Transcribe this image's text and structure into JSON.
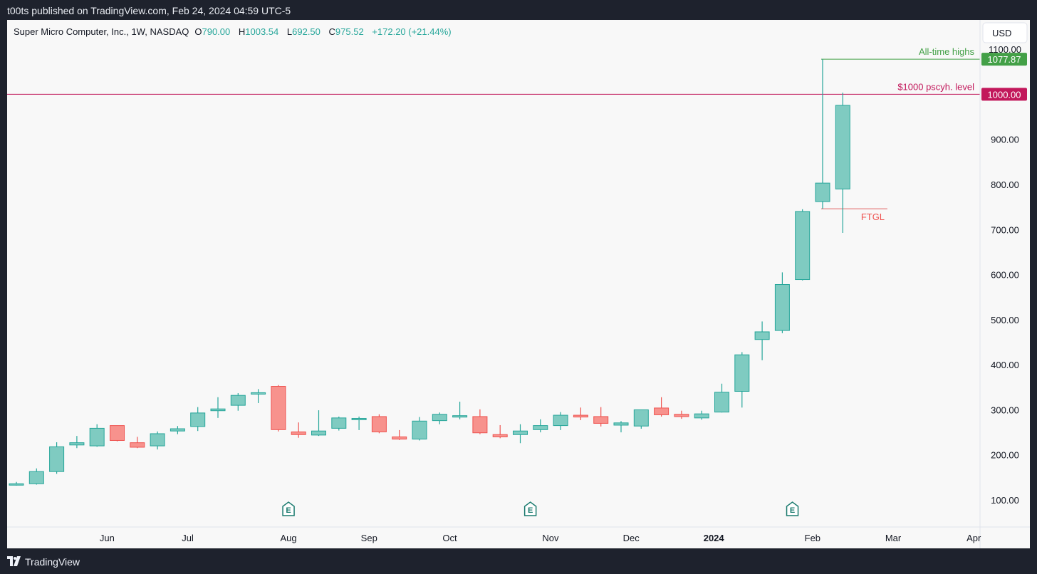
{
  "header": {
    "published_text": "t00ts published on TradingView.com, Feb 24, 2024 04:59 UTC-5"
  },
  "footer": {
    "brand": "TradingView",
    "logo_icon": "tradingview-logo-icon"
  },
  "chart": {
    "currency_button": "USD",
    "legend": {
      "symbol": "Super Micro Computer, Inc., 1W, NASDAQ",
      "o_label": "O",
      "o_value": "790.00",
      "h_label": "H",
      "h_value": "1003.54",
      "l_label": "L",
      "l_value": "692.50",
      "c_label": "C",
      "c_value": "975.52",
      "change": "+172.20 (+21.44%)"
    },
    "colors": {
      "up": "#26a69a",
      "up_fill": "#7fcbc1",
      "down": "#ef5350",
      "down_fill": "#f7928d",
      "ath_line": "#43a047",
      "psych_line": "#c2185b",
      "ftgl_line": "#e57373",
      "earnings": "#1b7b6f",
      "axis_text": "#131722"
    }
  },
  "chart_data": {
    "type": "candlestick",
    "title": "Super Micro Computer, Inc., 1W, NASDAQ",
    "ylim": [
      40,
      1165
    ],
    "y_ticks": [
      100,
      200,
      300,
      400,
      500,
      600,
      700,
      800,
      900,
      1000,
      1100
    ],
    "y_tick_labels": [
      "100.00",
      "200.00",
      "300.00",
      "400.00",
      "500.00",
      "600.00",
      "700.00",
      "800.00",
      "900.00",
      "1000.00",
      "1100.00"
    ],
    "x_labels": [
      {
        "label": "Jun",
        "week": 4.5,
        "bold": false
      },
      {
        "label": "Jul",
        "week": 8.5,
        "bold": false
      },
      {
        "label": "Aug",
        "week": 13.5,
        "bold": false
      },
      {
        "label": "Sep",
        "week": 17.5,
        "bold": false
      },
      {
        "label": "Oct",
        "week": 21.5,
        "bold": false
      },
      {
        "label": "Nov",
        "week": 26.5,
        "bold": false
      },
      {
        "label": "Dec",
        "week": 30.5,
        "bold": false
      },
      {
        "label": "2024",
        "week": 34.6,
        "bold": true
      },
      {
        "label": "Feb",
        "week": 39.5,
        "bold": false
      },
      {
        "label": "Mar",
        "week": 43.5,
        "bold": false
      },
      {
        "label": "Apr",
        "week": 47.5,
        "bold": false
      }
    ],
    "candles": [
      {
        "o": 135,
        "h": 140,
        "l": 132,
        "c": 136
      },
      {
        "o": 136,
        "h": 170,
        "l": 134,
        "c": 163
      },
      {
        "o": 163,
        "h": 228,
        "l": 158,
        "c": 218
      },
      {
        "o": 222,
        "h": 242,
        "l": 215,
        "c": 227
      },
      {
        "o": 220,
        "h": 268,
        "l": 218,
        "c": 259
      },
      {
        "o": 265,
        "h": 265,
        "l": 230,
        "c": 232
      },
      {
        "o": 227,
        "h": 240,
        "l": 215,
        "c": 217
      },
      {
        "o": 220,
        "h": 252,
        "l": 212,
        "c": 247
      },
      {
        "o": 253,
        "h": 264,
        "l": 246,
        "c": 258
      },
      {
        "o": 263,
        "h": 306,
        "l": 253,
        "c": 293
      },
      {
        "o": 298,
        "h": 328,
        "l": 282,
        "c": 302
      },
      {
        "o": 310,
        "h": 337,
        "l": 298,
        "c": 332
      },
      {
        "o": 335,
        "h": 346,
        "l": 315,
        "c": 338
      },
      {
        "o": 352,
        "h": 355,
        "l": 252,
        "c": 256
      },
      {
        "o": 251,
        "h": 272,
        "l": 238,
        "c": 245
      },
      {
        "o": 244,
        "h": 299,
        "l": 242,
        "c": 253
      },
      {
        "o": 259,
        "h": 285,
        "l": 254,
        "c": 282
      },
      {
        "o": 280,
        "h": 285,
        "l": 255,
        "c": 281
      },
      {
        "o": 285,
        "h": 290,
        "l": 248,
        "c": 251
      },
      {
        "o": 240,
        "h": 255,
        "l": 233,
        "c": 235
      },
      {
        "o": 235,
        "h": 284,
        "l": 232,
        "c": 275
      },
      {
        "o": 276,
        "h": 294,
        "l": 268,
        "c": 290
      },
      {
        "o": 285,
        "h": 318,
        "l": 279,
        "c": 287
      },
      {
        "o": 285,
        "h": 301,
        "l": 246,
        "c": 249
      },
      {
        "o": 245,
        "h": 266,
        "l": 237,
        "c": 240
      },
      {
        "o": 245,
        "h": 268,
        "l": 226,
        "c": 253
      },
      {
        "o": 256,
        "h": 279,
        "l": 250,
        "c": 265
      },
      {
        "o": 265,
        "h": 295,
        "l": 255,
        "c": 288
      },
      {
        "o": 288,
        "h": 305,
        "l": 277,
        "c": 284
      },
      {
        "o": 285,
        "h": 306,
        "l": 263,
        "c": 270
      },
      {
        "o": 266,
        "h": 275,
        "l": 250,
        "c": 271
      },
      {
        "o": 264,
        "h": 300,
        "l": 258,
        "c": 300
      },
      {
        "o": 304,
        "h": 328,
        "l": 285,
        "c": 289
      },
      {
        "o": 290,
        "h": 298,
        "l": 280,
        "c": 285
      },
      {
        "o": 282,
        "h": 298,
        "l": 278,
        "c": 291
      },
      {
        "o": 295,
        "h": 358,
        "l": 294,
        "c": 339
      },
      {
        "o": 341,
        "h": 428,
        "l": 305,
        "c": 422
      },
      {
        "o": 456,
        "h": 496,
        "l": 410,
        "c": 473
      },
      {
        "o": 476,
        "h": 605,
        "l": 470,
        "c": 578
      },
      {
        "o": 589,
        "h": 745,
        "l": 587,
        "c": 740
      },
      {
        "o": 762,
        "h": 1077.87,
        "l": 746,
        "c": 803
      },
      {
        "o": 790,
        "h": 1003.54,
        "l": 692.5,
        "c": 975.52
      }
    ],
    "earnings_weeks": [
      13.5,
      25.5,
      38.5
    ],
    "earnings_label": "E",
    "annotations": [
      {
        "type": "hline",
        "name": "ath",
        "value": 1077.87,
        "label": "All-time highs",
        "badge": "1077.87"
      },
      {
        "type": "hline",
        "name": "psych",
        "value": 1000,
        "label": "$1000 pscyh. level",
        "badge": "1000.00"
      },
      {
        "type": "hline",
        "name": "ftgl",
        "value": 746,
        "label": "FTGL"
      }
    ]
  }
}
